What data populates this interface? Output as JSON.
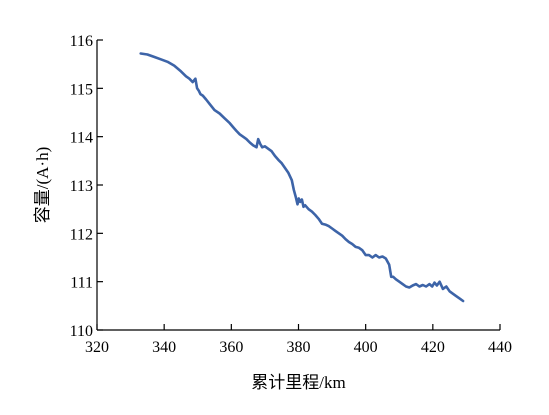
{
  "chart_data": {
    "type": "line",
    "title": "",
    "xlabel": "累计里程/km",
    "ylabel": "容量/(A·h)",
    "xlim": [
      320,
      440
    ],
    "ylim": [
      110,
      116
    ],
    "xticks": [
      320,
      340,
      360,
      380,
      400,
      420,
      440
    ],
    "yticks": [
      110,
      111,
      112,
      113,
      114,
      115,
      116
    ],
    "grid": false,
    "series_color": "#3d64a8",
    "series": [
      {
        "x": [
          333,
          335,
          337,
          339,
          341,
          343,
          345,
          346.5,
          347.5,
          348.5,
          349.3,
          349.8,
          350.3,
          350.8,
          351.5,
          352.5,
          353.5,
          355,
          356.5,
          358,
          359.5,
          360.5,
          361.5,
          362.5,
          363.5,
          364.5,
          365.5,
          366.5,
          367.5,
          368,
          368.6,
          369.2,
          370,
          371,
          372,
          373,
          374,
          375,
          376,
          377,
          378,
          378.6,
          379.2,
          379.7,
          380.1,
          380.5,
          381,
          381.5,
          382,
          383,
          384,
          385,
          386,
          387,
          388,
          389,
          390,
          391,
          392,
          393,
          394,
          395,
          396,
          397,
          398,
          399,
          400,
          401,
          402,
          403,
          404,
          405,
          406,
          407,
          407.6,
          408.2,
          409,
          410,
          411,
          412,
          413,
          414,
          415,
          416,
          417,
          418,
          419,
          419.8,
          420.5,
          421.2,
          422,
          423,
          424,
          425,
          426,
          427,
          428,
          429
        ],
        "values": [
          115.72,
          115.7,
          115.65,
          115.6,
          115.55,
          115.47,
          115.35,
          115.25,
          115.2,
          115.13,
          115.2,
          115.0,
          114.95,
          114.88,
          114.85,
          114.77,
          114.68,
          114.55,
          114.48,
          114.38,
          114.28,
          114.2,
          114.12,
          114.05,
          114.0,
          113.95,
          113.88,
          113.82,
          113.78,
          113.95,
          113.85,
          113.78,
          113.8,
          113.75,
          113.7,
          113.6,
          113.52,
          113.45,
          113.35,
          113.25,
          113.1,
          112.9,
          112.75,
          112.6,
          112.72,
          112.65,
          112.7,
          112.55,
          112.58,
          112.5,
          112.45,
          112.38,
          112.3,
          112.2,
          112.18,
          112.15,
          112.1,
          112.05,
          112.0,
          111.95,
          111.88,
          111.82,
          111.78,
          111.72,
          111.7,
          111.65,
          111.55,
          111.55,
          111.5,
          111.55,
          111.5,
          111.52,
          111.48,
          111.35,
          111.1,
          111.1,
          111.05,
          111.0,
          110.95,
          110.9,
          110.88,
          110.92,
          110.95,
          110.9,
          110.93,
          110.9,
          110.95,
          110.9,
          110.98,
          110.92,
          111.0,
          110.85,
          110.9,
          110.8,
          110.75,
          110.7,
          110.65,
          110.6
        ]
      }
    ]
  }
}
